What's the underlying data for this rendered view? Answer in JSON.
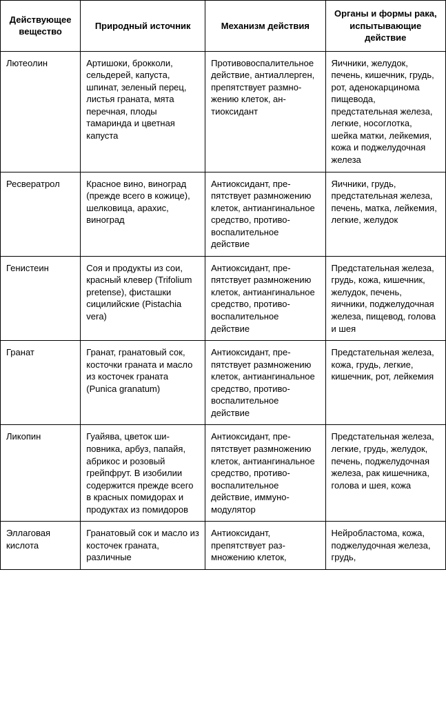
{
  "table": {
    "columns": [
      "Действующее вещество",
      "Природный источник",
      "Механизм действия",
      "Органы и формы рака, испытывающие действие"
    ],
    "col_widths_pct": [
      18,
      28,
      27,
      27
    ],
    "border_color": "#000000",
    "background_color": "#ffffff",
    "font_family": "Arial",
    "header_fontsize_pt": 10,
    "cell_fontsize_pt": 10,
    "rows": [
      {
        "substance": "Лютеолин",
        "source": "Артишоки, брокко­ли, сельдерей, ка­пуста, шпинат, зе­леный перец, листья граната, мята перечная, пло­ды тамаринда и цветная капуста",
        "mechanism": "Противовоспали­тельное действие, антиаллерген, пре­пятствует размно­жению клеток, ан­тиоксидант",
        "targets": "Яичники, желудок, печень, кишечник, грудь, рот, адено­карцинома пищево­да, предстательная железа, легкие, носоглотка, шейка матки, лейкемия, кожа и поджелу­дочная железа"
      },
      {
        "substance": "Ресвератрол",
        "source": "Красное вино, ви­ноград (прежде всего в кожице), шелковица, арахис, виноград",
        "mechanism": "Антиоксидант, пре­пятствует размно­жению клеток, ан­тиангинальное средство, противо­воспалительное действие",
        "targets": "Яичники, грудь, предстательная железа, печень, матка, лейкемия, легкие, желудок"
      },
      {
        "substance": "Генистеин",
        "source": "Соя и продукты из сои, красный кле­вер (Trifolium pretense), фисташки сицилийские (Pistachia vera)",
        "mechanism": "Антиоксидант, пре­пятствует размно­жению клеток, ан­тиангинальное средство, противо­воспалительное действие",
        "targets": "Предстательная же­леза, грудь, кожа, кишечник, желудок, печень, яичники, поджелудочная же­леза, пищевод, го­лова и шея"
      },
      {
        "substance": "Гранат",
        "source": "Гранат, гранатовый сок, косточки гра­ната и масло из косточек граната (Punica granatum)",
        "mechanism": "Антиоксидант, пре­пятствует размно­жению клеток, ан­тиангинальное средство, противо­воспалительное действие",
        "targets": "Предстательная железа, кожа, грудь, легкие, кишечник, рот, лейкемия"
      },
      {
        "substance": "Ликопин",
        "source": "Гуайява, цветок ши­повника, арбуз, па­пайя, абрикос и розовый грейпфрут. В изобилии содер­жится прежде всего в красных помидо­рах и продуктах из помидоров",
        "mechanism": "Антиоксидант, пре­пятствует размно­жению клеток, ан­тиангинальное средство, противо­воспалительное действие, иммуно­модулятор",
        "targets": "Предстательная железа, легкие, грудь, желудок, печень, поджелу­дочная железа, рак кишечника, голова и шея, кожа"
      },
      {
        "substance": "Эллаговая кислота",
        "source": "Гранатовый сок и масло из косточек граната, различные",
        "mechanism": "Антиоксидант, препятствует раз­множению клеток,",
        "targets": "Нейробластома, кожа, поджелудоч­ная железа, грудь,"
      }
    ]
  }
}
